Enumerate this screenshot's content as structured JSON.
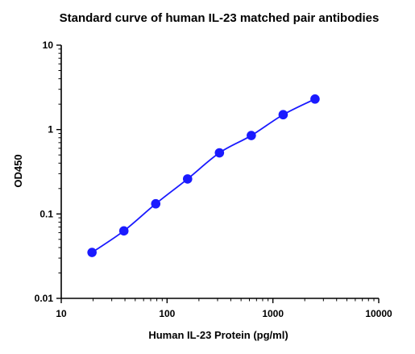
{
  "chart_data": {
    "type": "scatter",
    "title": "Standard curve of human IL-23 matched pair antibodies",
    "xlabel": "Human IL-23 Protein (pg/ml)",
    "ylabel": "OD450",
    "x_scale": "log",
    "y_scale": "log",
    "xlim": [
      10,
      10000
    ],
    "ylim": [
      0.01,
      10
    ],
    "x_ticks": [
      "10",
      "100",
      "1000",
      "10000"
    ],
    "y_ticks": [
      "0.01",
      "0.1",
      "1",
      "10"
    ],
    "grid": false,
    "legend": "none",
    "series": [
      {
        "color": "#1a1aff",
        "fit_line": true,
        "points": [
          {
            "x": 19.53,
            "y": 0.035
          },
          {
            "x": 39.06,
            "y": 0.063
          },
          {
            "x": 78.13,
            "y": 0.132
          },
          {
            "x": 156.25,
            "y": 0.26
          },
          {
            "x": 312.5,
            "y": 0.53
          },
          {
            "x": 625,
            "y": 0.85
          },
          {
            "x": 1250,
            "y": 1.5
          },
          {
            "x": 2500,
            "y": 2.3
          }
        ]
      }
    ]
  }
}
